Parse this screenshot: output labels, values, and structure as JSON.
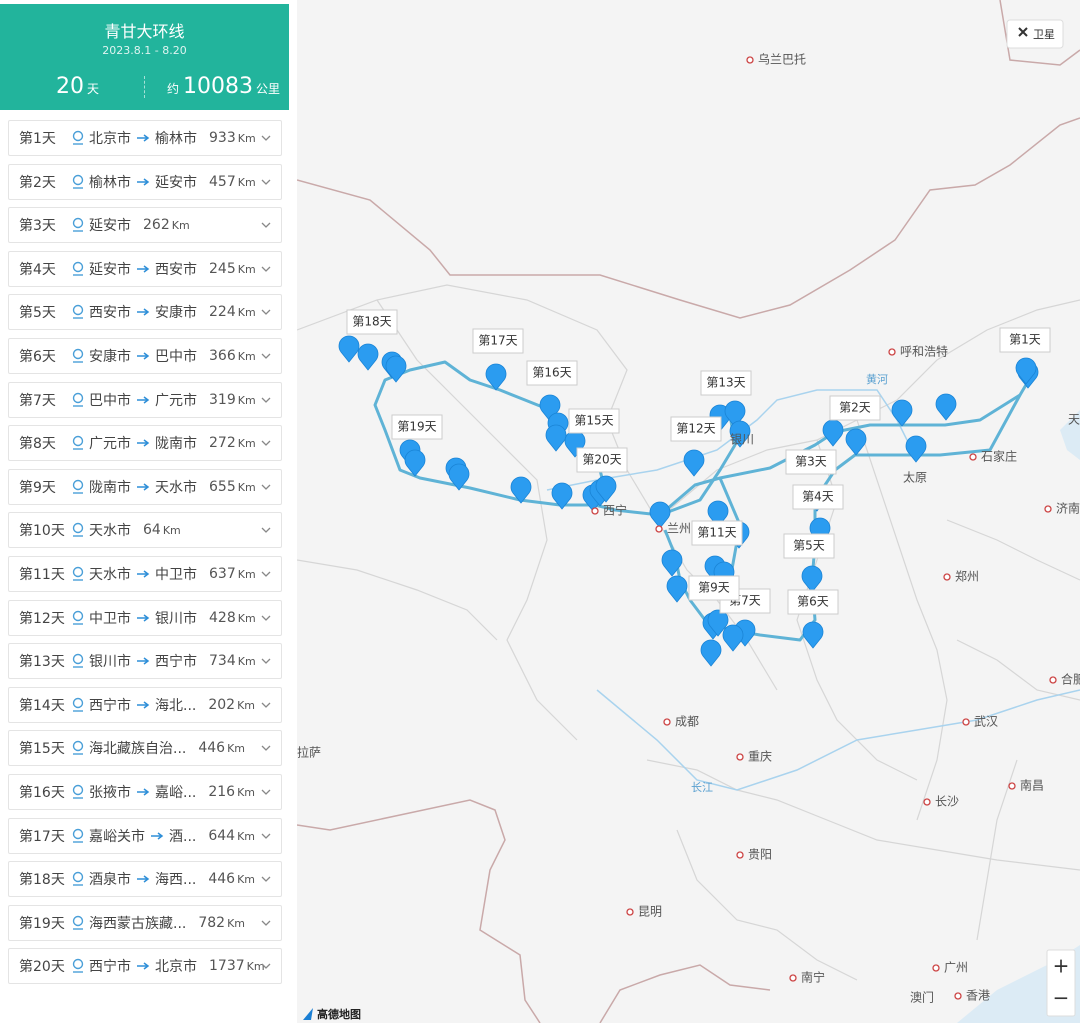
{
  "header": {
    "title": "青甘大环线",
    "dates": "2023.8.1 - 8.20",
    "days_value": "20",
    "days_unit": "天",
    "distance_prefix": "约",
    "distance_value": "10083",
    "distance_unit": "公里"
  },
  "days": [
    {
      "day": "第1天",
      "from": "北京市",
      "to": "榆林市",
      "distance": "933",
      "unit": "Km"
    },
    {
      "day": "第2天",
      "from": "榆林市",
      "to": "延安市",
      "distance": "457",
      "unit": "Km"
    },
    {
      "day": "第3天",
      "from": "延安市",
      "distance": "262",
      "unit": "Km"
    },
    {
      "day": "第4天",
      "from": "延安市",
      "to": "西安市",
      "distance": "245",
      "unit": "Km"
    },
    {
      "day": "第5天",
      "from": "西安市",
      "to": "安康市",
      "distance": "224",
      "unit": "Km"
    },
    {
      "day": "第6天",
      "from": "安康市",
      "to": "巴中市",
      "distance": "366",
      "unit": "Km"
    },
    {
      "day": "第7天",
      "from": "巴中市",
      "to": "广元市",
      "distance": "319",
      "unit": "Km"
    },
    {
      "day": "第8天",
      "from": "广元市",
      "to": "陇南市",
      "distance": "272",
      "unit": "Km"
    },
    {
      "day": "第9天",
      "from": "陇南市",
      "to": "天水市",
      "distance": "655",
      "unit": "Km"
    },
    {
      "day": "第10天",
      "from": "天水市",
      "distance": "64",
      "unit": "Km"
    },
    {
      "day": "第11天",
      "from": "天水市",
      "to": "中卫市",
      "distance": "637",
      "unit": "Km"
    },
    {
      "day": "第12天",
      "from": "中卫市",
      "to": "银川市",
      "distance": "428",
      "unit": "Km"
    },
    {
      "day": "第13天",
      "from": "银川市",
      "to": "西宁市",
      "distance": "734",
      "unit": "Km"
    },
    {
      "day": "第14天",
      "from": "西宁市",
      "to": "海北...",
      "distance": "202",
      "unit": "Km"
    },
    {
      "day": "第15天",
      "from": "海北藏族自治...",
      "distance": "446",
      "unit": "Km"
    },
    {
      "day": "第16天",
      "from": "张掖市",
      "to": "嘉峪...",
      "distance": "216",
      "unit": "Km"
    },
    {
      "day": "第17天",
      "from": "嘉峪关市",
      "to": "酒...",
      "distance": "644",
      "unit": "Km"
    },
    {
      "day": "第18天",
      "from": "酒泉市",
      "to": "海西...",
      "distance": "446",
      "unit": "Km"
    },
    {
      "day": "第19天",
      "from": "海西蒙古族藏...",
      "distance": "782",
      "unit": "Km"
    },
    {
      "day": "第20天",
      "from": "西宁市",
      "to": "北京市",
      "distance": "1737",
      "unit": "Km"
    }
  ],
  "map": {
    "cities": [
      "乌兰巴托",
      "呼和浩特",
      "天津",
      "石家庄",
      "太原",
      "济南",
      "郑州",
      "合肥",
      "武汉",
      "成都",
      "重庆",
      "长沙",
      "南昌",
      "贵阳",
      "昆明",
      "南宁",
      "广州",
      "澳门",
      "香港",
      "拉萨",
      "兰州",
      "西宁",
      "银川"
    ],
    "rivers": [
      "黄河",
      "长江"
    ],
    "day_labels": [
      "第1天",
      "第2天",
      "第3天",
      "第4天",
      "第5天",
      "第6天",
      "第7天",
      "第9天",
      "第11天",
      "第12天",
      "第13天",
      "第15天",
      "第16天",
      "第17天",
      "第18天",
      "第19天",
      "第20天"
    ],
    "layer_button": "卫星",
    "attribution": "高德地图",
    "zoom_in": "+",
    "zoom_out": "−"
  }
}
